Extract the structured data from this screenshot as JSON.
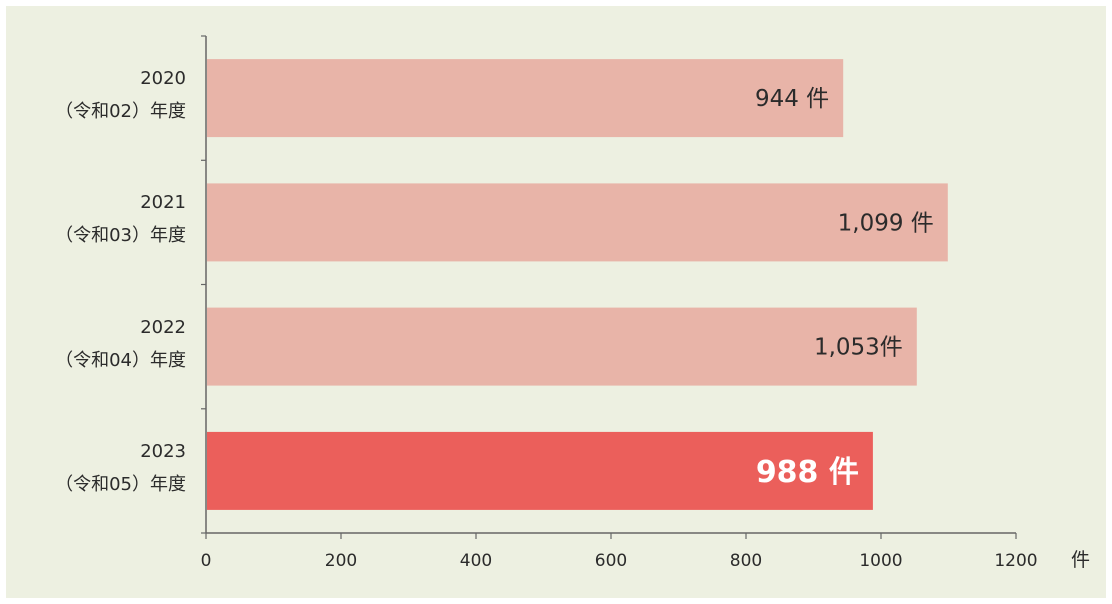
{
  "colors": {
    "background": "#edf0e1",
    "bar": "#e8b4a8",
    "bar_highlight": "#eb5f5b",
    "axis": "#666666"
  },
  "chart_data": {
    "type": "bar",
    "orientation": "horizontal",
    "categories": [
      {
        "year": "2020",
        "era": "（令和02）年度"
      },
      {
        "year": "2021",
        "era": "（令和03）年度"
      },
      {
        "year": "2022",
        "era": "（令和04）年度"
      },
      {
        "year": "2023",
        "era": "（令和05）年度"
      }
    ],
    "values": [
      944,
      1099,
      1053,
      988
    ],
    "data_labels": [
      "944 件",
      "1,099 件",
      "1,053件",
      "988 件"
    ],
    "highlight_index": 3,
    "xlim": [
      0,
      1200
    ],
    "xticks": [
      0,
      200,
      400,
      600,
      800,
      1000,
      1200
    ],
    "xtick_labels": [
      "0",
      "200",
      "400",
      "600",
      "800",
      "1000",
      "1200"
    ],
    "x_unit": "件",
    "grid": false,
    "legend": "none"
  }
}
